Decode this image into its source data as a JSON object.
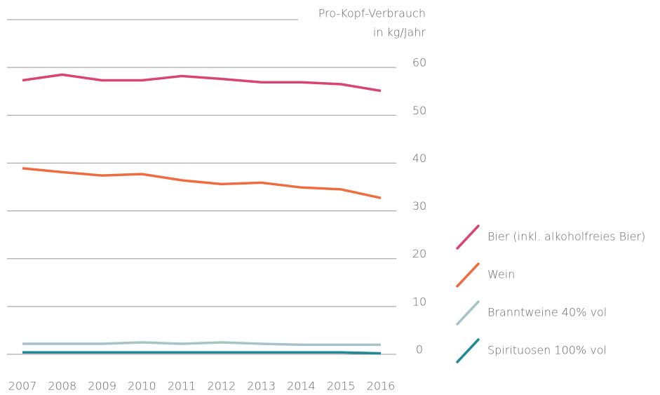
{
  "chart_data": {
    "type": "line",
    "ylabel": [
      "Pro-Kopf-Verbrauch",
      "in kg/Jahr"
    ],
    "x": [
      2007,
      2008,
      2009,
      2010,
      2011,
      2012,
      2013,
      2014,
      2015,
      2016
    ],
    "xlim": [
      2007,
      2016
    ],
    "ylim": [
      0,
      70
    ],
    "yticks": [
      0,
      10,
      20,
      30,
      40,
      50,
      60
    ],
    "grid": true,
    "legend": "right",
    "series": [
      {
        "name": "Bier (inkl. alkoholfreies Bier)",
        "color": "#d9456f",
        "values": [
          57.3,
          58.5,
          57.3,
          57.3,
          58.2,
          57.6,
          56.9,
          56.9,
          56.5,
          55.1
        ]
      },
      {
        "name": "Wein",
        "color": "#ef6c3f",
        "values": [
          38.9,
          38.1,
          37.4,
          37.7,
          36.4,
          35.6,
          35.9,
          34.9,
          34.5,
          32.7
        ]
      },
      {
        "name": "Branntweine 40% vol",
        "color": "#a6c4c6",
        "values": [
          2.2,
          2.2,
          2.2,
          2.5,
          2.2,
          2.5,
          2.2,
          2.0,
          2.0,
          2.0
        ]
      },
      {
        "name": "Spirituosen 100% vol",
        "color": "#1f8a96",
        "values": [
          0.4,
          0.4,
          0.4,
          0.4,
          0.4,
          0.4,
          0.4,
          0.4,
          0.4,
          0.2
        ]
      }
    ]
  }
}
